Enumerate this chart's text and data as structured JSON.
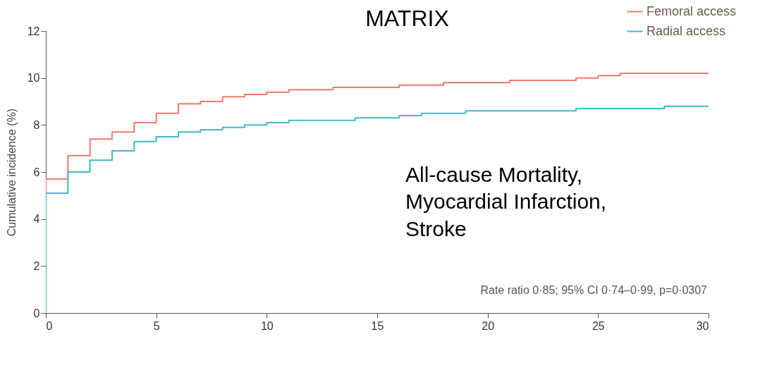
{
  "chart_data": {
    "type": "step",
    "title": "MATRIX",
    "ylabel": "Cumulative incidence (%)",
    "annotations": [
      "All-cause Mortality,\nMyocardial Infarction,\nStroke",
      "Rate ratio 0·85; 95% CI 0·74–0·99, p=0·0307"
    ],
    "x": [
      0,
      0,
      1,
      2,
      3,
      4,
      5,
      6,
      7,
      8,
      9,
      10,
      11,
      12,
      13,
      14,
      15,
      16,
      17,
      18,
      19,
      20,
      21,
      22,
      23,
      24,
      25,
      26,
      27,
      28,
      29,
      30
    ],
    "series": [
      {
        "name": "Femoral access",
        "color": "#f47a68",
        "values": [
          0,
          5.7,
          6.7,
          7.4,
          7.7,
          8.1,
          8.5,
          8.9,
          9.0,
          9.2,
          9.3,
          9.4,
          9.5,
          9.5,
          9.6,
          9.6,
          9.6,
          9.7,
          9.7,
          9.8,
          9.8,
          9.8,
          9.9,
          9.9,
          9.9,
          10.0,
          10.1,
          10.2,
          10.2,
          10.2,
          10.2,
          10.2
        ]
      },
      {
        "name": "Radial access",
        "color": "#3fb9cf",
        "values": [
          0,
          5.1,
          6.0,
          6.5,
          6.9,
          7.3,
          7.5,
          7.7,
          7.8,
          7.9,
          8.0,
          8.1,
          8.2,
          8.2,
          8.2,
          8.3,
          8.3,
          8.4,
          8.5,
          8.5,
          8.6,
          8.6,
          8.6,
          8.6,
          8.6,
          8.7,
          8.7,
          8.7,
          8.7,
          8.8,
          8.8,
          8.8
        ]
      }
    ],
    "xlim": [
      0,
      30
    ],
    "xticks": [
      0,
      5,
      10,
      15,
      20,
      25,
      30
    ],
    "ylim": [
      0,
      12
    ],
    "yticks": [
      0,
      2,
      4,
      6,
      8,
      10,
      12
    ],
    "grid": false,
    "legend": "top right",
    "marker": "none",
    "line_style": "solid"
  }
}
